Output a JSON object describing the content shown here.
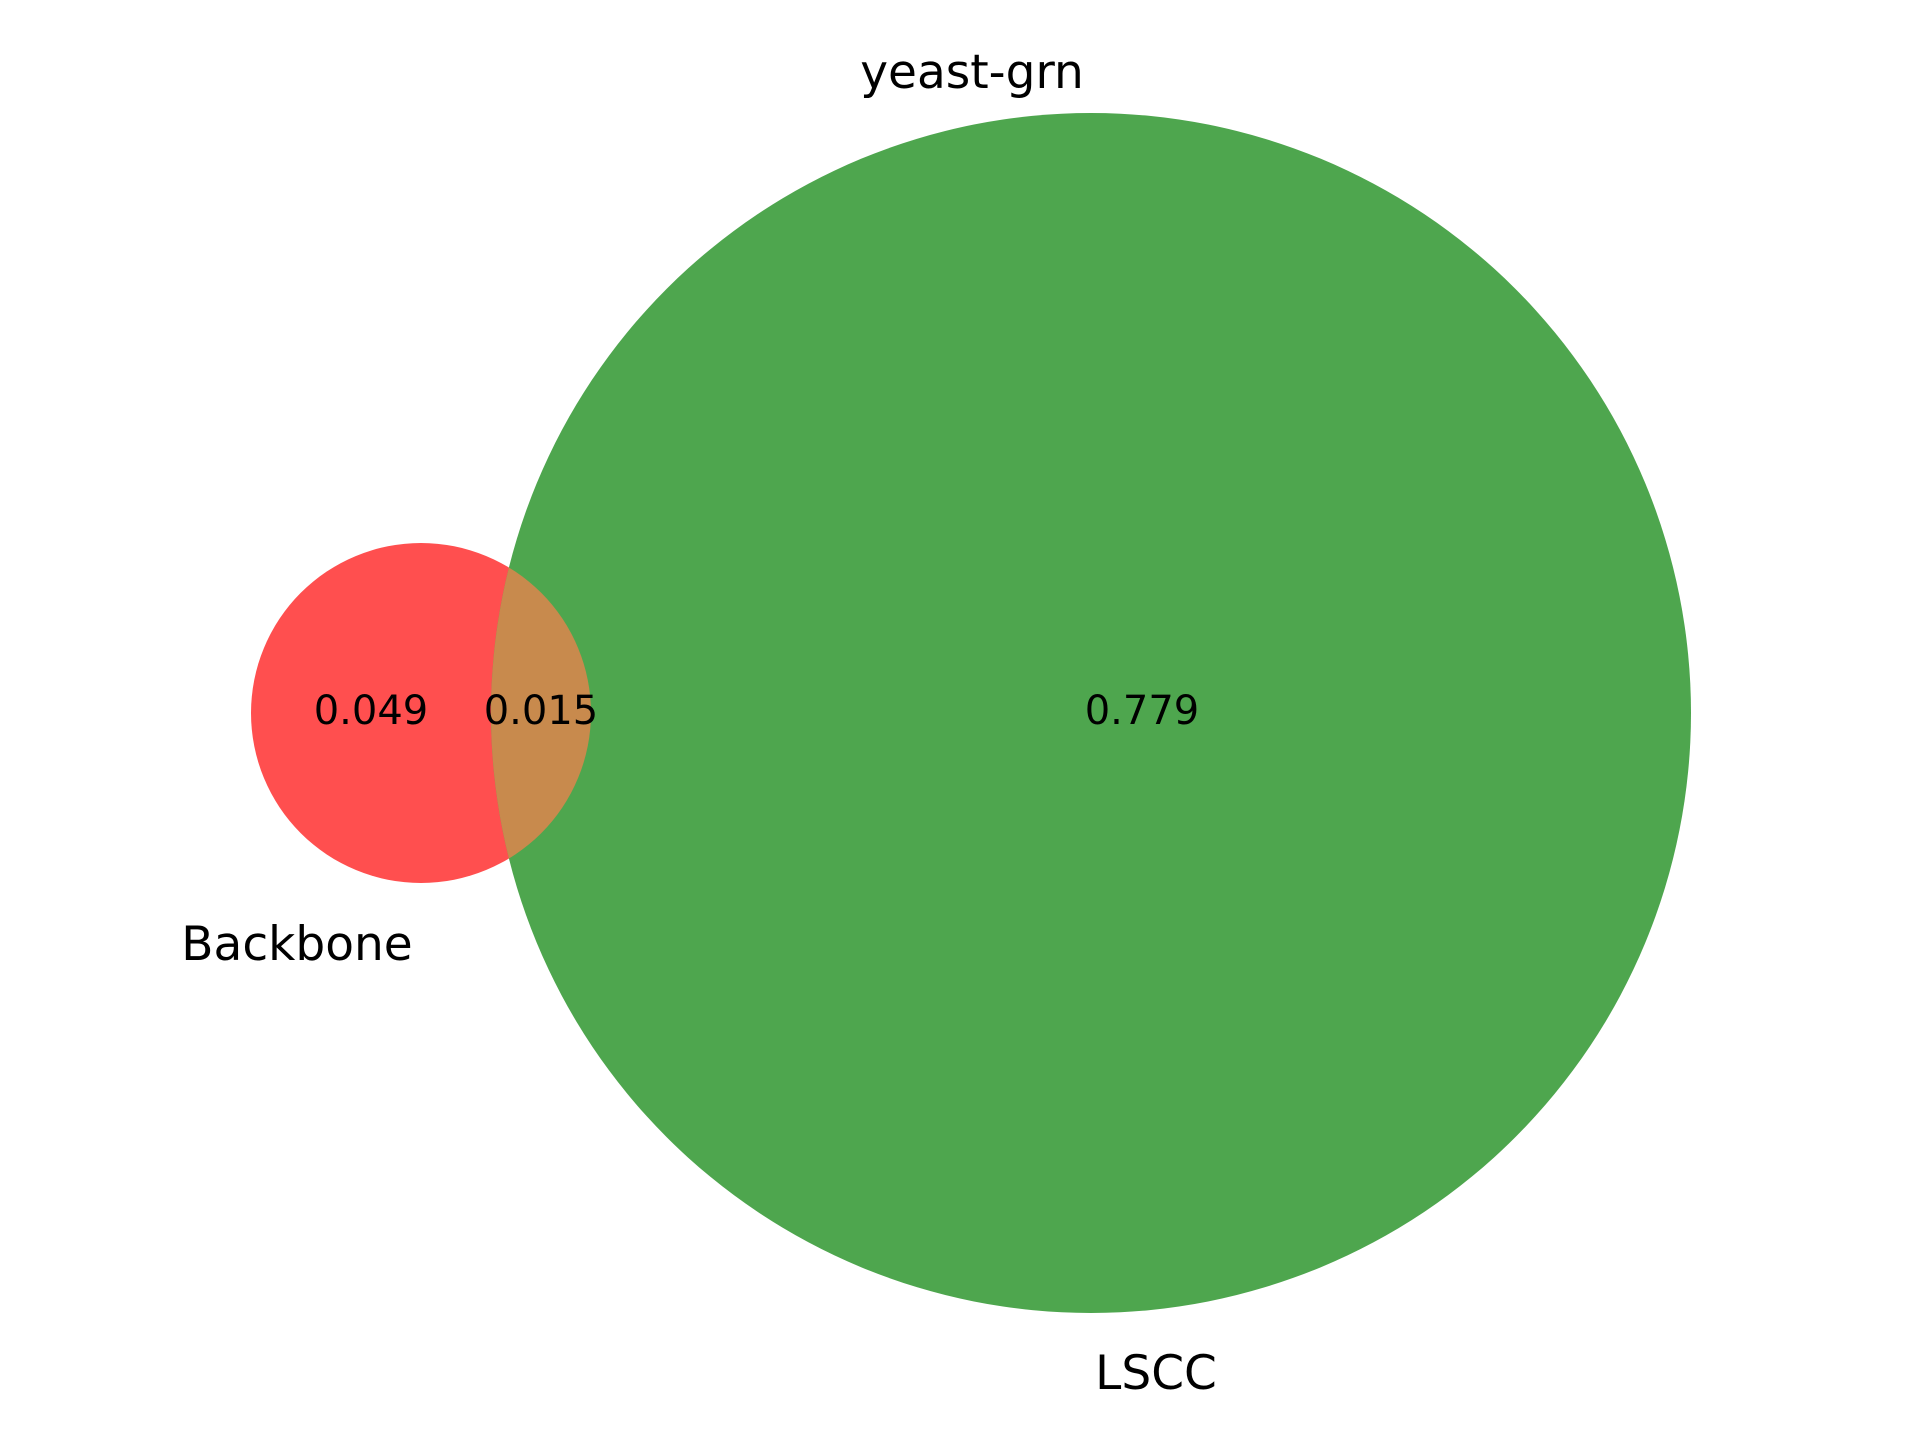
{
  "diagram": {
    "type": "venn2",
    "title": "",
    "sets": {
      "left": {
        "label": "Backbone",
        "color": "#ff4f4f"
      },
      "right": {
        "label": "LSCC",
        "color": "#4ea64e"
      }
    },
    "overlap_color": "#c88a4d",
    "top_label": "yeast-grn",
    "regions": {
      "left_only": "0.049",
      "both": "0.015",
      "right_only": "0.779"
    }
  }
}
